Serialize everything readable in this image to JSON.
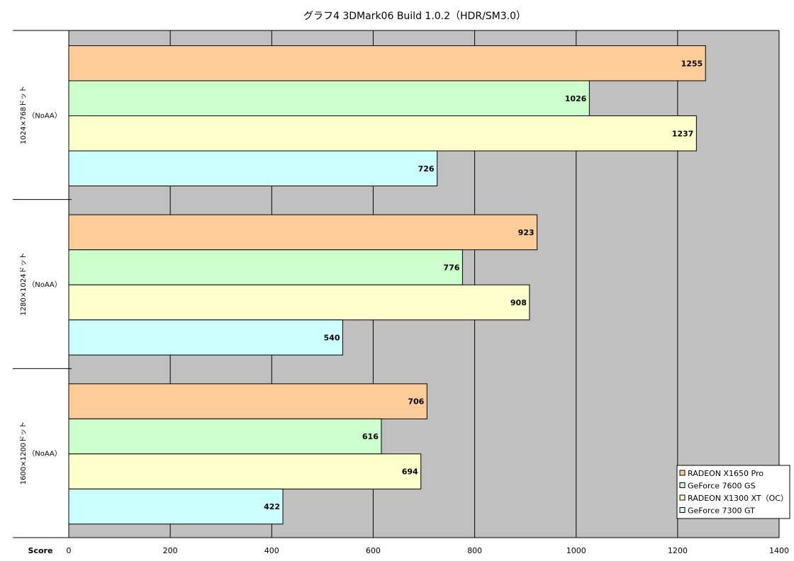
{
  "chart_data": {
    "type": "bar",
    "orientation": "horizontal",
    "title": "グラフ4  3DMark06 Build 1.0.2（HDR/SM3.0）",
    "xlabel": "Score",
    "xlim": [
      0,
      1400
    ],
    "xticks": [
      0,
      200,
      400,
      600,
      800,
      1000,
      1200,
      1400
    ],
    "grid": true,
    "legend_position": "bottom-right",
    "categories": [
      {
        "line1": "1024×768ドット",
        "line2": "（NoAA）"
      },
      {
        "line1": "1280×1024ドット",
        "line2": "（NoAA）"
      },
      {
        "line1": "1600×1200ドット",
        "line2": "（NoAA）"
      }
    ],
    "series": [
      {
        "name": "RADEON X1650 Pro",
        "color": "#ffcc99",
        "values": [
          1255,
          923,
          706
        ]
      },
      {
        "name": "GeForce 7600 GS",
        "color": "#ccffcc",
        "values": [
          1026,
          776,
          616
        ]
      },
      {
        "name": "RADEON X1300 XT（OC）",
        "color": "#ffffcc",
        "values": [
          1237,
          908,
          694
        ]
      },
      {
        "name": "GeForce 7300 GT",
        "color": "#ccffff",
        "values": [
          726,
          540,
          422
        ]
      }
    ],
    "plot_background": "#c0c0c0"
  }
}
